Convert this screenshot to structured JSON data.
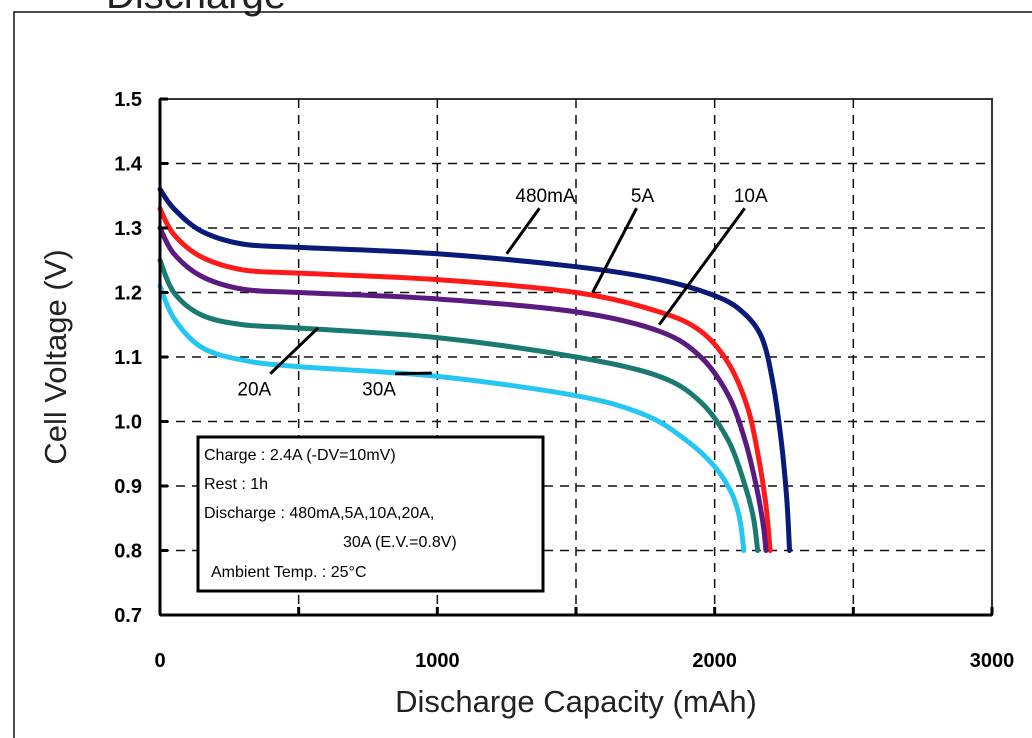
{
  "frame_title": "Discharge",
  "conditions": [
    "Charge : 2.4A (-DV=10mV)",
    "Rest : 1h",
    "Discharge : 480mA,5A,10A,20A,",
    "30A (E.V.=0.8V)",
    "Ambient Temp. : 25°C"
  ],
  "chart_data": {
    "type": "line",
    "title": "",
    "xlabel": "Discharge Capacity (mAh)",
    "ylabel": "Cell Voltage (V)",
    "xlim": [
      0,
      3000
    ],
    "ylim": [
      0.7,
      1.5
    ],
    "x_ticks": [
      0,
      1000,
      2000,
      3000
    ],
    "x_tick_labels": [
      "0",
      "1000",
      "2000",
      "3000"
    ],
    "y_ticks": [
      0.7,
      0.8,
      0.9,
      1.0,
      1.1,
      1.2,
      1.3,
      1.4,
      1.5
    ],
    "y_tick_labels": [
      "0.7",
      "0.8",
      "0.9",
      "1.0",
      "1.1",
      "1.2",
      "1.3",
      "1.4",
      "1.5"
    ],
    "grid": "dashed",
    "series": [
      {
        "name": "480mA",
        "color": "#0a1a78",
        "points": [
          [
            0,
            1.36
          ],
          [
            50,
            1.33
          ],
          [
            150,
            1.295
          ],
          [
            300,
            1.275
          ],
          [
            500,
            1.27
          ],
          [
            1000,
            1.26
          ],
          [
            1500,
            1.24
          ],
          [
            1800,
            1.22
          ],
          [
            2000,
            1.195
          ],
          [
            2100,
            1.17
          ],
          [
            2170,
            1.13
          ],
          [
            2210,
            1.06
          ],
          [
            2240,
            0.97
          ],
          [
            2260,
            0.88
          ],
          [
            2270,
            0.8
          ]
        ]
      },
      {
        "name": "5A",
        "color": "#ff1a1a",
        "points": [
          [
            0,
            1.33
          ],
          [
            50,
            1.29
          ],
          [
            150,
            1.255
          ],
          [
            300,
            1.235
          ],
          [
            500,
            1.23
          ],
          [
            1000,
            1.22
          ],
          [
            1500,
            1.2
          ],
          [
            1800,
            1.17
          ],
          [
            1950,
            1.14
          ],
          [
            2050,
            1.09
          ],
          [
            2120,
            1.02
          ],
          [
            2160,
            0.94
          ],
          [
            2185,
            0.87
          ],
          [
            2200,
            0.8
          ]
        ]
      },
      {
        "name": "10A",
        "color": "#5a1a80",
        "points": [
          [
            0,
            1.3
          ],
          [
            50,
            1.26
          ],
          [
            150,
            1.225
          ],
          [
            300,
            1.205
          ],
          [
            500,
            1.2
          ],
          [
            1000,
            1.19
          ],
          [
            1500,
            1.17
          ],
          [
            1800,
            1.14
          ],
          [
            1950,
            1.1
          ],
          [
            2050,
            1.04
          ],
          [
            2110,
            0.97
          ],
          [
            2150,
            0.9
          ],
          [
            2175,
            0.84
          ],
          [
            2185,
            0.8
          ]
        ]
      },
      {
        "name": "20A",
        "color": "#1a7a70",
        "points": [
          [
            0,
            1.25
          ],
          [
            50,
            1.2
          ],
          [
            150,
            1.165
          ],
          [
            300,
            1.15
          ],
          [
            500,
            1.145
          ],
          [
            1000,
            1.13
          ],
          [
            1500,
            1.1
          ],
          [
            1800,
            1.07
          ],
          [
            1950,
            1.03
          ],
          [
            2050,
            0.97
          ],
          [
            2110,
            0.9
          ],
          [
            2140,
            0.85
          ],
          [
            2155,
            0.8
          ]
        ]
      },
      {
        "name": "30A",
        "color": "#26c6f2",
        "points": [
          [
            0,
            1.21
          ],
          [
            50,
            1.16
          ],
          [
            150,
            1.115
          ],
          [
            300,
            1.095
          ],
          [
            500,
            1.085
          ],
          [
            1000,
            1.07
          ],
          [
            1500,
            1.04
          ],
          [
            1750,
            1.01
          ],
          [
            1900,
            0.97
          ],
          [
            2000,
            0.93
          ],
          [
            2060,
            0.89
          ],
          [
            2090,
            0.85
          ],
          [
            2105,
            0.8
          ]
        ]
      }
    ],
    "annotations": [
      {
        "text": "480mA",
        "anchor": [
          1250,
          1.26
        ],
        "label_at": [
          1390,
          1.34
        ]
      },
      {
        "text": "5A",
        "anchor": [
          1560,
          1.2
        ],
        "label_at": [
          1740,
          1.34
        ]
      },
      {
        "text": "10A",
        "anchor": [
          1800,
          1.15
        ],
        "label_at": [
          2130,
          1.34
        ]
      },
      {
        "text": "20A",
        "anchor": [
          570,
          1.145
        ],
        "label_at": [
          340,
          1.04
        ]
      },
      {
        "text": "30A",
        "anchor": [
          980,
          1.075
        ],
        "label_at": [
          790,
          1.04
        ]
      }
    ]
  }
}
